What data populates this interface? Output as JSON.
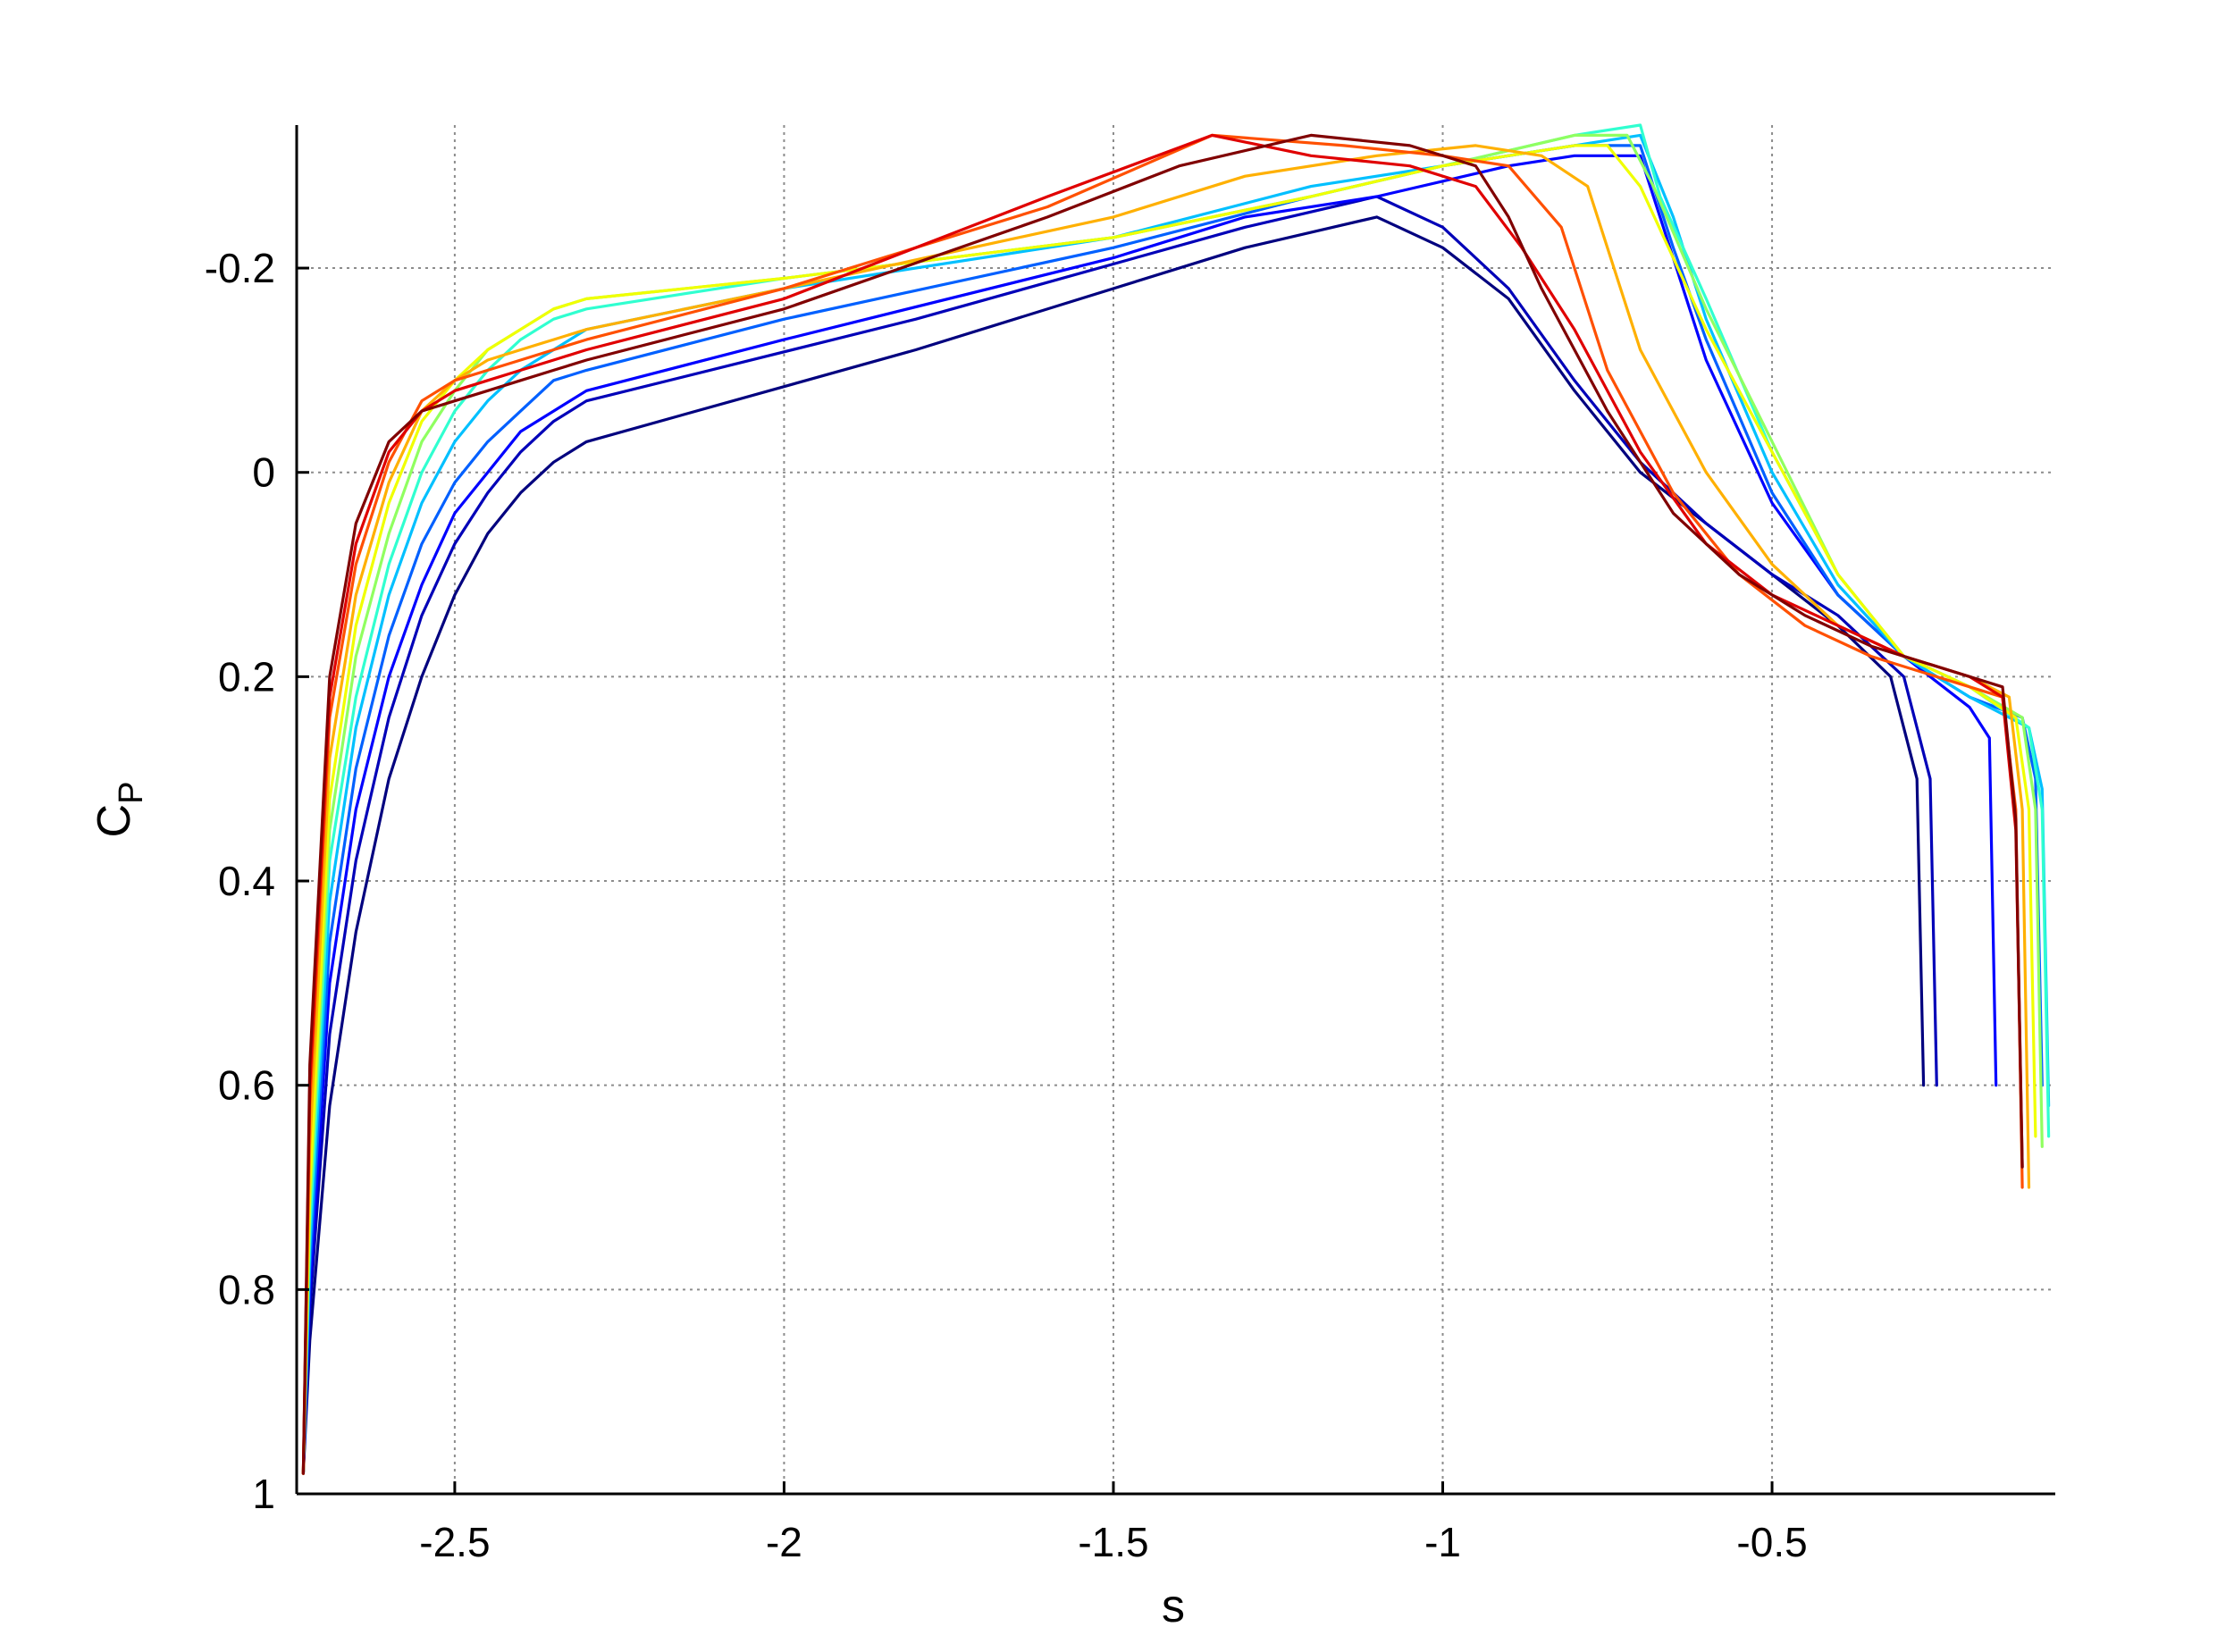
{
  "chart_data": {
    "type": "line",
    "title": "",
    "xlabel": "s",
    "ylabel": "C",
    "ylabel_sub": "P",
    "xlim": [
      -2.74,
      -0.07
    ],
    "ylim": [
      -0.34,
      1
    ],
    "y_reversed": true,
    "grid": true,
    "x_ticks": [
      -2.5,
      -2,
      -1.5,
      -1,
      -0.5
    ],
    "x_tick_labels": [
      "-2.5",
      "-2",
      "-1.5",
      "-1",
      "-0.5"
    ],
    "y_ticks": [
      -0.2,
      0,
      0.2,
      0.4,
      0.6,
      0.8,
      1
    ],
    "y_tick_labels": [
      "-0.2",
      "0",
      "0.2",
      "0.4",
      "0.6",
      "0.8",
      "1"
    ],
    "colormap": "jet",
    "series_note_count": 12,
    "series": [
      {
        "color": "#00007f",
        "x": [
          -2.73,
          -2.72,
          -2.69,
          -2.65,
          -2.6,
          -2.55,
          -2.5,
          -2.45,
          -2.4,
          -2.35,
          -2.3,
          -1.8,
          -1.3,
          -1.1,
          -1.0,
          -0.9,
          -0.8,
          -0.7,
          -0.6,
          -0.5,
          -0.4,
          -0.32,
          -0.28,
          -0.27
        ],
        "y": [
          0.98,
          0.85,
          0.62,
          0.45,
          0.3,
          0.2,
          0.12,
          0.06,
          0.02,
          -0.01,
          -0.03,
          -0.12,
          -0.22,
          -0.25,
          -0.22,
          -0.17,
          -0.08,
          0.0,
          0.05,
          0.1,
          0.15,
          0.2,
          0.3,
          0.6
        ]
      },
      {
        "color": "#0000b8",
        "x": [
          -2.73,
          -2.72,
          -2.69,
          -2.65,
          -2.6,
          -2.55,
          -2.5,
          -2.45,
          -2.4,
          -2.35,
          -2.3,
          -1.8,
          -1.3,
          -1.1,
          -1.0,
          -0.9,
          -0.8,
          -0.7,
          -0.6,
          -0.5,
          -0.4,
          -0.3,
          -0.26,
          -0.25
        ],
        "y": [
          0.98,
          0.82,
          0.55,
          0.38,
          0.24,
          0.14,
          0.07,
          0.02,
          -0.02,
          -0.05,
          -0.07,
          -0.15,
          -0.24,
          -0.27,
          -0.24,
          -0.18,
          -0.09,
          -0.01,
          0.05,
          0.1,
          0.14,
          0.2,
          0.3,
          0.6
        ]
      },
      {
        "color": "#0000ff",
        "x": [
          -2.73,
          -2.72,
          -2.69,
          -2.65,
          -2.6,
          -2.55,
          -2.5,
          -2.45,
          -2.4,
          -2.35,
          -2.3,
          -2.0,
          -1.5,
          -1.3,
          -1.1,
          -0.9,
          -0.8,
          -0.7,
          -0.6,
          -0.5,
          -0.4,
          -0.3,
          -0.2,
          -0.17,
          -0.16
        ],
        "y": [
          0.98,
          0.8,
          0.5,
          0.33,
          0.2,
          0.11,
          0.04,
          0.0,
          -0.04,
          -0.06,
          -0.08,
          -0.13,
          -0.21,
          -0.25,
          -0.27,
          -0.3,
          -0.31,
          -0.31,
          -0.11,
          0.03,
          0.12,
          0.18,
          0.23,
          0.26,
          0.6
        ]
      },
      {
        "color": "#0060ff",
        "x": [
          -2.73,
          -2.72,
          -2.69,
          -2.65,
          -2.6,
          -2.55,
          -2.5,
          -2.45,
          -2.4,
          -2.35,
          -2.3,
          -2.0,
          -1.5,
          -1.2,
          -1.0,
          -0.8,
          -0.7,
          -0.65,
          -0.6,
          -0.5,
          -0.4,
          -0.3,
          -0.2,
          -0.12,
          -0.1,
          -0.09
        ],
        "y": [
          0.98,
          0.78,
          0.46,
          0.29,
          0.16,
          0.07,
          0.01,
          -0.03,
          -0.06,
          -0.09,
          -0.1,
          -0.15,
          -0.22,
          -0.27,
          -0.3,
          -0.32,
          -0.32,
          -0.22,
          -0.13,
          0.02,
          0.12,
          0.18,
          0.22,
          0.24,
          0.3,
          0.6
        ]
      },
      {
        "color": "#00c0ff",
        "x": [
          -2.73,
          -2.72,
          -2.69,
          -2.65,
          -2.6,
          -2.55,
          -2.5,
          -2.45,
          -2.4,
          -2.35,
          -2.3,
          -2.0,
          -1.5,
          -1.2,
          -1.0,
          -0.8,
          -0.7,
          -0.65,
          -0.6,
          -0.5,
          -0.4,
          -0.3,
          -0.2,
          -0.11,
          -0.09,
          -0.08
        ],
        "y": [
          0.98,
          0.76,
          0.42,
          0.25,
          0.12,
          0.03,
          -0.03,
          -0.07,
          -0.1,
          -0.12,
          -0.14,
          -0.18,
          -0.23,
          -0.28,
          -0.3,
          -0.32,
          -0.33,
          -0.25,
          -0.15,
          0.0,
          0.11,
          0.18,
          0.22,
          0.25,
          0.31,
          0.62
        ]
      },
      {
        "color": "#30ffd0",
        "x": [
          -2.73,
          -2.72,
          -2.69,
          -2.65,
          -2.6,
          -2.55,
          -2.5,
          -2.45,
          -2.4,
          -2.35,
          -2.3,
          -2.0,
          -1.5,
          -1.2,
          -1.0,
          -0.8,
          -0.7,
          -0.67,
          -0.6,
          -0.5,
          -0.4,
          -0.3,
          -0.2,
          -0.11,
          -0.09,
          -0.08
        ],
        "y": [
          0.98,
          0.74,
          0.38,
          0.22,
          0.09,
          0.0,
          -0.06,
          -0.1,
          -0.13,
          -0.15,
          -0.16,
          -0.19,
          -0.23,
          -0.27,
          -0.3,
          -0.33,
          -0.34,
          -0.27,
          -0.17,
          -0.02,
          0.1,
          0.18,
          0.21,
          0.25,
          0.33,
          0.65
        ]
      },
      {
        "color": "#90ff60",
        "x": [
          -2.73,
          -2.72,
          -2.69,
          -2.65,
          -2.6,
          -2.55,
          -2.5,
          -2.45,
          -2.4,
          -2.35,
          -2.3,
          -2.0,
          -1.5,
          -1.2,
          -1.0,
          -0.8,
          -0.72,
          -0.68,
          -0.6,
          -0.5,
          -0.4,
          -0.3,
          -0.2,
          -0.12,
          -0.1,
          -0.09
        ],
        "y": [
          0.98,
          0.72,
          0.35,
          0.18,
          0.06,
          -0.03,
          -0.08,
          -0.12,
          -0.14,
          -0.16,
          -0.17,
          -0.19,
          -0.23,
          -0.27,
          -0.3,
          -0.33,
          -0.33,
          -0.28,
          -0.16,
          -0.03,
          0.1,
          0.18,
          0.21,
          0.24,
          0.33,
          0.66
        ]
      },
      {
        "color": "#f0ff00",
        "x": [
          -2.73,
          -2.72,
          -2.69,
          -2.65,
          -2.6,
          -2.55,
          -2.5,
          -2.45,
          -2.4,
          -2.35,
          -2.3,
          -2.0,
          -1.5,
          -1.2,
          -1.0,
          -0.8,
          -0.75,
          -0.7,
          -0.6,
          -0.5,
          -0.4,
          -0.3,
          -0.2,
          -0.13,
          -0.11,
          -0.1
        ],
        "y": [
          0.98,
          0.7,
          0.32,
          0.15,
          0.03,
          -0.05,
          -0.09,
          -0.12,
          -0.14,
          -0.16,
          -0.17,
          -0.19,
          -0.23,
          -0.27,
          -0.3,
          -0.32,
          -0.32,
          -0.28,
          -0.14,
          -0.02,
          0.1,
          0.18,
          0.21,
          0.24,
          0.33,
          0.65
        ]
      },
      {
        "color": "#ffb000",
        "x": [
          -2.73,
          -2.72,
          -2.69,
          -2.65,
          -2.6,
          -2.55,
          -2.5,
          -2.45,
          -2.4,
          -2.35,
          -2.3,
          -2.0,
          -1.5,
          -1.3,
          -1.1,
          -0.95,
          -0.85,
          -0.78,
          -0.7,
          -0.6,
          -0.5,
          -0.4,
          -0.3,
          -0.2,
          -0.14,
          -0.12,
          -0.11
        ],
        "y": [
          0.98,
          0.66,
          0.28,
          0.12,
          0.01,
          -0.06,
          -0.09,
          -0.11,
          -0.12,
          -0.13,
          -0.14,
          -0.18,
          -0.25,
          -0.29,
          -0.31,
          -0.32,
          -0.31,
          -0.28,
          -0.12,
          0.0,
          0.09,
          0.15,
          0.18,
          0.2,
          0.22,
          0.33,
          0.7
        ]
      },
      {
        "color": "#ff5000",
        "x": [
          -2.73,
          -2.72,
          -2.69,
          -2.65,
          -2.6,
          -2.55,
          -2.5,
          -2.45,
          -2.4,
          -2.35,
          -2.3,
          -2.0,
          -1.6,
          -1.35,
          -1.15,
          -1.0,
          -0.9,
          -0.82,
          -0.75,
          -0.65,
          -0.55,
          -0.45,
          -0.35,
          -0.25,
          -0.15,
          -0.13,
          -0.12
        ],
        "y": [
          0.98,
          0.62,
          0.24,
          0.09,
          -0.01,
          -0.07,
          -0.09,
          -0.1,
          -0.11,
          -0.12,
          -0.13,
          -0.18,
          -0.26,
          -0.33,
          -0.32,
          -0.31,
          -0.3,
          -0.24,
          -0.1,
          0.02,
          0.1,
          0.15,
          0.18,
          0.2,
          0.22,
          0.33,
          0.7
        ]
      },
      {
        "color": "#e00000",
        "x": [
          -2.73,
          -2.72,
          -2.69,
          -2.65,
          -2.6,
          -2.55,
          -2.5,
          -2.45,
          -2.4,
          -2.35,
          -2.3,
          -2.0,
          -1.6,
          -1.35,
          -1.2,
          -1.05,
          -0.95,
          -0.88,
          -0.8,
          -0.7,
          -0.6,
          -0.5,
          -0.4,
          -0.3,
          -0.2,
          -0.15,
          -0.13,
          -0.12
        ],
        "y": [
          0.98,
          0.6,
          0.22,
          0.07,
          -0.02,
          -0.06,
          -0.08,
          -0.09,
          -0.1,
          -0.11,
          -0.12,
          -0.17,
          -0.27,
          -0.33,
          -0.31,
          -0.3,
          -0.28,
          -0.22,
          -0.14,
          -0.02,
          0.07,
          0.12,
          0.15,
          0.18,
          0.2,
          0.22,
          0.35,
          0.68
        ]
      },
      {
        "color": "#800000",
        "x": [
          -2.73,
          -2.72,
          -2.69,
          -2.65,
          -2.6,
          -2.55,
          -2.5,
          -2.45,
          -2.4,
          -2.35,
          -2.3,
          -2.0,
          -1.6,
          -1.4,
          -1.2,
          -1.05,
          -0.95,
          -0.9,
          -0.85,
          -0.75,
          -0.65,
          -0.55,
          -0.45,
          -0.35,
          -0.25,
          -0.15,
          -0.13,
          -0.12
        ],
        "y": [
          0.98,
          0.58,
          0.2,
          0.05,
          -0.03,
          -0.06,
          -0.07,
          -0.08,
          -0.09,
          -0.1,
          -0.11,
          -0.16,
          -0.25,
          -0.3,
          -0.33,
          -0.32,
          -0.3,
          -0.25,
          -0.18,
          -0.06,
          0.04,
          0.1,
          0.14,
          0.17,
          0.19,
          0.21,
          0.34,
          0.68
        ]
      }
    ]
  }
}
